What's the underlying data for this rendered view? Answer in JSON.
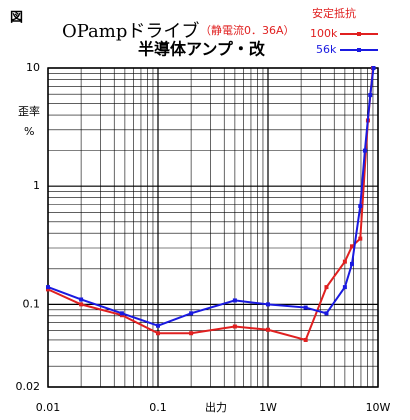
{
  "chart_data": {
    "type": "line",
    "figure_label": "図",
    "title": "OPampドライブ",
    "title_note": "（静電流0．36A）",
    "subtitle": "半導体アンプ・改",
    "legend_title": "安定抵抗",
    "y_label": "歪率",
    "y_unit": "%",
    "x_label": "出力",
    "log_x": true,
    "log_y": true,
    "grid": true,
    "xlim": [
      0.01,
      10
    ],
    "ylim": [
      0.02,
      10
    ],
    "xticks": [
      0.01,
      0.1,
      {
        "value": 1,
        "label": "1W"
      },
      {
        "value": 10,
        "label": "10W"
      }
    ],
    "yticks": [
      10,
      1,
      0.1,
      0.02
    ],
    "series": [
      {
        "name": "100k",
        "color": "#e02020",
        "x": [
          0.01,
          0.02,
          0.047,
          0.1,
          0.2,
          0.5,
          1,
          2.2,
          3.4,
          5,
          5.8,
          6.9,
          8.1,
          9
        ],
        "values": [
          0.134,
          0.1,
          0.081,
          0.057,
          0.057,
          0.065,
          0.061,
          0.05,
          0.14,
          0.23,
          0.31,
          0.36,
          3.6,
          10
        ]
      },
      {
        "name": "56k",
        "color": "#1a1ae0",
        "x": [
          0.01,
          0.02,
          0.047,
          0.1,
          0.2,
          0.5,
          1,
          2.2,
          3.4,
          5,
          5.8,
          6.9,
          7.6,
          8.5,
          9.1
        ],
        "values": [
          0.14,
          0.11,
          0.084,
          0.066,
          0.084,
          0.108,
          0.1,
          0.094,
          0.084,
          0.14,
          0.22,
          0.68,
          2.0,
          5.9,
          10
        ]
      }
    ]
  }
}
